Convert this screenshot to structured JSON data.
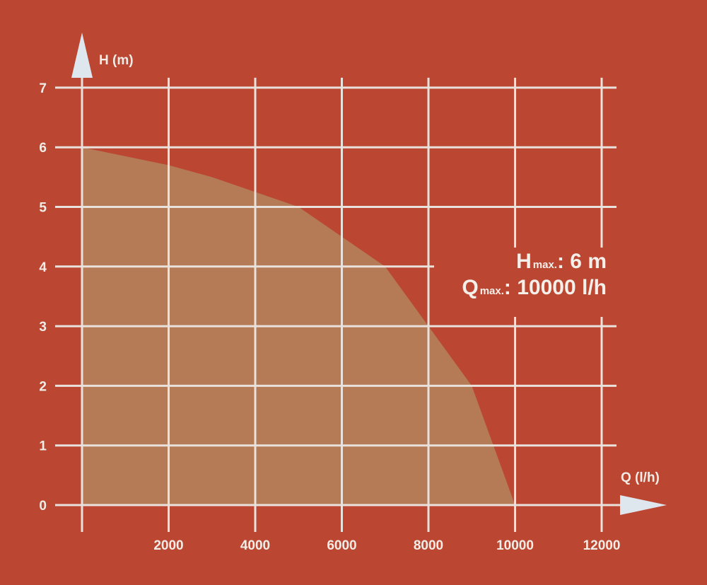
{
  "chart_data": {
    "type": "area",
    "xlabel": "Q (l/h)",
    "ylabel": "H (m)",
    "xlim": [
      0,
      12000
    ],
    "ylim": [
      0,
      7
    ],
    "x_ticks": [
      "2000",
      "4000",
      "6000",
      "8000",
      "10000",
      "12000"
    ],
    "y_ticks": [
      "0",
      "1",
      "2",
      "3",
      "4",
      "5",
      "6",
      "7"
    ],
    "grid": true,
    "series": [
      {
        "x": [
          0,
          2000,
          3000,
          4000,
          5000,
          6000,
          7000,
          8000,
          9000,
          9500,
          10000
        ],
        "y": [
          6.0,
          5.7,
          5.5,
          5.25,
          5.0,
          4.5,
          4.0,
          3.0,
          2.0,
          1.0,
          0
        ]
      }
    ],
    "annotations": {
      "hmax": {
        "symbol": "H",
        "sub": "max.",
        "value": ": 6 m"
      },
      "qmax": {
        "symbol": "Q",
        "sub": "max.",
        "value": ": 10000 l/h"
      }
    }
  },
  "colors": {
    "background": "#bb4632",
    "fill": "#b57a56",
    "grid": "#e9e2dc",
    "text": "#f2ece6",
    "arrow": "#dfe7ee"
  }
}
